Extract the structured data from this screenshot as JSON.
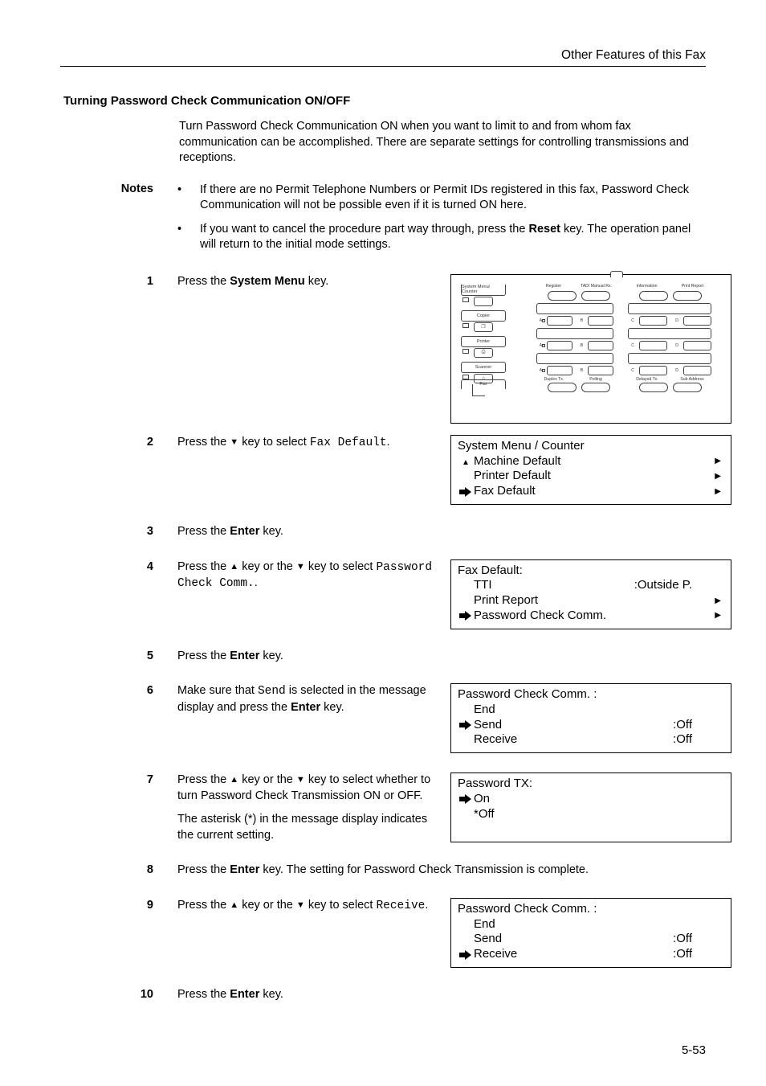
{
  "header": {
    "title": "Other Features of this Fax"
  },
  "section_title": "Turning Password Check Communication ON/OFF",
  "intro": "Turn Password Check Communication ON when you want to limit to and from whom fax communication can be accomplished. There are separate settings for controlling transmissions and receptions.",
  "notes_label": "Notes",
  "notes": [
    "If there are no Permit Telephone Numbers or Permit IDs registered in this fax, Password Check Communication will not be possible even if it is turned ON here.",
    "If you want to cancel the procedure part way through, press the Reset key. The operation panel will return to the initial mode settings."
  ],
  "notes_bold": {
    "1": "Reset"
  },
  "glyphs": {
    "up": "▲",
    "down": "▼",
    "bullet": "•"
  },
  "steps": {
    "s1": {
      "num": "1",
      "pre": "Press the ",
      "bold": "System Menu",
      "post": " key."
    },
    "s2": {
      "num": "2",
      "pre": "Press the ",
      "key": "▼",
      "mid": " key to select ",
      "mono": "Fax Default",
      "post": "."
    },
    "s3": {
      "num": "3",
      "pre": "Press the ",
      "bold": "Enter",
      "post": " key."
    },
    "s4": {
      "num": "4",
      "pre": "Press the ",
      "k1": "▲",
      "mid1": " key or the ",
      "k2": "▼",
      "mid2": " key to select ",
      "mono": "Password Check Comm.",
      "post": "."
    },
    "s5": {
      "num": "5",
      "pre": "Press the ",
      "bold": "Enter",
      "post": " key."
    },
    "s6": {
      "num": "6",
      "pre": "Make sure that ",
      "mono": "Send",
      "mid": " is selected in the message display and press the ",
      "bold": "Enter",
      "post": " key."
    },
    "s7": {
      "num": "7",
      "p1_pre": "Press the ",
      "p1_k1": "▲",
      "p1_mid1": " key or the ",
      "p1_k2": "▼",
      "p1_post": " key to select whether to turn Password Check Transmission ON or OFF.",
      "p2": "The asterisk (*) in the message display indicates the current setting."
    },
    "s8": {
      "num": "8",
      "pre": "Press the ",
      "bold": "Enter",
      "post": " key. The setting for Password Check Transmission is complete."
    },
    "s9": {
      "num": "9",
      "pre": "Press the ",
      "k1": "▲",
      "mid1": " key or the ",
      "k2": "▼",
      "mid2": " key to select ",
      "mono": "Receive",
      "post": "."
    },
    "s10": {
      "num": "10",
      "pre": "Press the ",
      "bold": "Enter",
      "post": " key."
    }
  },
  "panel": {
    "modes": [
      "System Menu/ Counter",
      "Copier",
      "Printer",
      "Scanner"
    ],
    "fax": "Fax",
    "top_left": [
      "Register",
      "TAD/ Manual Rx."
    ],
    "top_right": [
      "Information",
      "Print Report"
    ],
    "bottom_left": [
      "Duplex Tx.",
      "Polling"
    ],
    "bottom_right": [
      "Delayed Tx.",
      "Sub Address"
    ]
  },
  "lcd2": {
    "title": "System Menu / Counter",
    "items": [
      "Machine Default",
      "Printer Default",
      "Fax Default"
    ],
    "selected_index": 2,
    "scroll_up": true
  },
  "lcd4": {
    "title": "Fax Default:",
    "rows": [
      {
        "label": "TTI",
        "value": ":Outside P."
      },
      {
        "label": "Print Report",
        "tri": true
      },
      {
        "label": "Password Check Comm.",
        "tri": true
      }
    ],
    "selected_index": 2
  },
  "lcd6": {
    "title": "Password Check Comm. :",
    "rows": [
      {
        "label": "End"
      },
      {
        "label": "Send",
        "value": ":Off"
      },
      {
        "label": "Receive",
        "value": ":Off"
      }
    ],
    "selected_index": 1
  },
  "lcd7": {
    "title": "Password TX:",
    "rows": [
      {
        "label": "On"
      },
      {
        "label": "*Off"
      }
    ],
    "selected_index": 0
  },
  "lcd9": {
    "title": "Password Check Comm. :",
    "rows": [
      {
        "label": "End"
      },
      {
        "label": "Send",
        "value": ":Off"
      },
      {
        "label": "Receive",
        "value": ":Off"
      }
    ],
    "selected_index": 2
  },
  "page_number": "5-53",
  "colors": {
    "text": "#000000",
    "border": "#000000",
    "panel_line": "#444444",
    "background": "#ffffff"
  },
  "typography": {
    "body_pt": 11,
    "mono_family": "Courier New"
  }
}
